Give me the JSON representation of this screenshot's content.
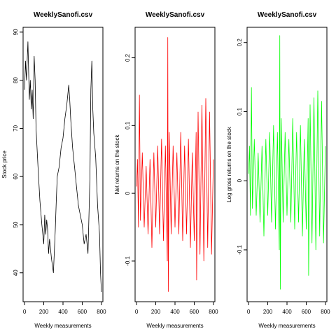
{
  "chart_data": [
    {
      "type": "line",
      "title": "WeeklySanofi.csv",
      "xlabel": "Weekly measurements",
      "ylabel": "Stock price",
      "color": "#000000",
      "xlim": [
        -15,
        815
      ],
      "ylim": [
        34,
        91
      ],
      "x_ticks": [
        0,
        200,
        400,
        600,
        800
      ],
      "y_ticks": [
        40,
        50,
        60,
        70,
        80,
        90
      ],
      "series": [
        {
          "x": [
            0,
            10,
            20,
            35,
            50,
            60,
            70,
            80,
            90,
            100,
            110,
            120,
            140,
            160,
            180,
            200,
            210,
            220,
            230,
            240,
            250,
            260,
            280,
            300,
            320,
            330,
            340,
            360,
            380,
            400,
            420,
            440,
            460,
            470,
            480,
            500,
            520,
            540,
            560,
            580,
            600,
            620,
            640,
            660,
            680,
            690,
            700,
            710,
            720,
            740,
            760,
            780,
            790,
            800
          ],
          "y": [
            78,
            84,
            80,
            88,
            76,
            80,
            74,
            78,
            72,
            85,
            80,
            70,
            62,
            55,
            50,
            46,
            52,
            48,
            51,
            49,
            44,
            47,
            43,
            40,
            49,
            55,
            60,
            62,
            66,
            68,
            72,
            75,
            79,
            76,
            72,
            66,
            62,
            58,
            54,
            52,
            50,
            46,
            48,
            44,
            60,
            78,
            84,
            74,
            69,
            64,
            54,
            48,
            40,
            36
          ]
        }
      ]
    },
    {
      "type": "line",
      "title": "WeeklySanofi.csv",
      "xlabel": "Weekly measurements",
      "ylabel": "Net returns on the stock",
      "color": "#ff0000",
      "xlim": [
        -15,
        815
      ],
      "ylim": [
        -0.16,
        0.245
      ],
      "x_ticks": [
        0,
        200,
        400,
        600,
        800
      ],
      "y_ticks": [
        -0.1,
        0.0,
        0.1,
        0.2
      ],
      "series": [
        {
          "x": [
            0,
            10,
            20,
            30,
            40,
            60,
            80,
            100,
            120,
            140,
            160,
            180,
            200,
            220,
            240,
            260,
            280,
            300,
            320,
            325,
            330,
            340,
            360,
            380,
            400,
            420,
            440,
            460,
            480,
            500,
            520,
            540,
            560,
            580,
            600,
            620,
            625,
            640,
            660,
            680,
            700,
            720,
            740,
            760,
            780,
            800
          ],
          "y": [
            0.01,
            0.05,
            -0.05,
            0.145,
            -0.04,
            0.06,
            -0.05,
            0.04,
            -0.06,
            0.05,
            -0.08,
            0.06,
            -0.05,
            0.07,
            -0.06,
            0.08,
            -0.07,
            0.07,
            -0.1,
            0.23,
            -0.145,
            0.09,
            -0.06,
            0.07,
            -0.05,
            0.06,
            -0.06,
            0.09,
            -0.07,
            0.07,
            -0.06,
            0.08,
            -0.08,
            0.06,
            -0.07,
            0.09,
            -0.128,
            0.12,
            -0.09,
            0.13,
            -0.1,
            0.14,
            -0.08,
            0.12,
            -0.09,
            0.05
          ]
        }
      ]
    },
    {
      "type": "line",
      "title": "WeeklySanofi.csv",
      "xlabel": "Weekly measurements",
      "ylabel": "Log gross returns on the stock",
      "color": "#00ff00",
      "xlim": [
        -15,
        815
      ],
      "ylim": [
        -0.175,
        0.222
      ],
      "x_ticks": [
        0,
        200,
        400,
        600,
        800
      ],
      "y_ticks": [
        -0.1,
        0.0,
        0.1,
        0.2
      ],
      "series": [
        {
          "x": [
            0,
            10,
            20,
            30,
            40,
            60,
            80,
            100,
            120,
            140,
            160,
            180,
            200,
            220,
            240,
            260,
            280,
            300,
            320,
            325,
            330,
            340,
            360,
            380,
            400,
            420,
            440,
            460,
            480,
            500,
            520,
            540,
            560,
            580,
            600,
            620,
            625,
            640,
            660,
            680,
            700,
            720,
            740,
            760,
            780,
            800
          ],
          "y": [
            0.01,
            0.05,
            -0.05,
            0.135,
            -0.04,
            0.06,
            -0.05,
            0.04,
            -0.06,
            0.05,
            -0.08,
            0.06,
            -0.05,
            0.07,
            -0.06,
            0.08,
            -0.07,
            0.07,
            -0.1,
            0.21,
            -0.157,
            0.09,
            -0.06,
            0.07,
            -0.05,
            0.06,
            -0.06,
            0.09,
            -0.07,
            0.07,
            -0.06,
            0.08,
            -0.08,
            0.06,
            -0.07,
            0.09,
            -0.137,
            0.11,
            -0.09,
            0.12,
            -0.1,
            0.13,
            -0.08,
            0.115,
            -0.09,
            0.05
          ]
        }
      ]
    }
  ]
}
